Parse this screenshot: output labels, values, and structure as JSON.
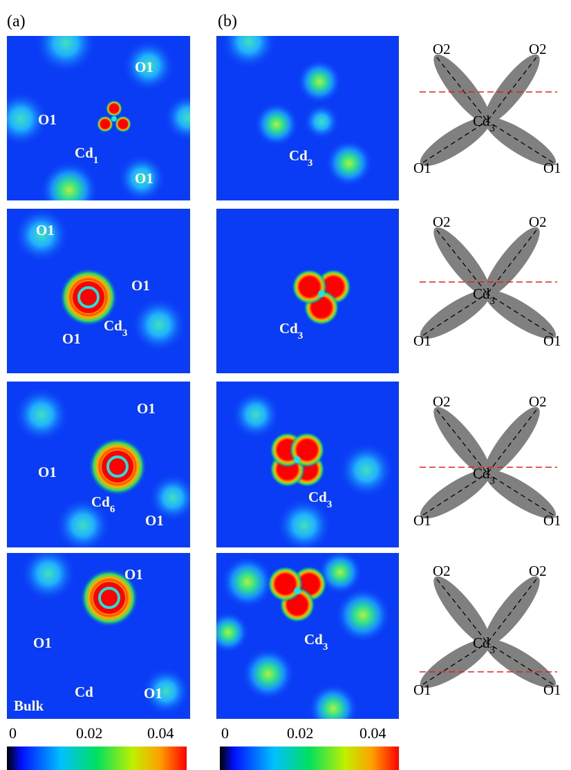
{
  "column_labels": [
    "(a)",
    "(b)"
  ],
  "rows": [
    {
      "a_labels": [
        "O1",
        "O1",
        "O1"
      ],
      "a_center": {
        "text": "Cd",
        "sub": "1"
      },
      "b_center": {
        "text": "Cd",
        "sub": "3"
      },
      "diagram": {
        "top_left": "O2",
        "top_right": "O2",
        "bottom_left": "O1",
        "bottom_right": "O1",
        "center": {
          "text": "Cd",
          "sub": "3"
        }
      }
    },
    {
      "a_labels": [
        "O1",
        "O1",
        "O1"
      ],
      "a_center": {
        "text": "Cd",
        "sub": "3"
      },
      "b_center": {
        "text": "Cd",
        "sub": "3"
      },
      "diagram": {
        "top_left": "O2",
        "top_right": "O2",
        "bottom_left": "O1",
        "bottom_right": "O1",
        "center": {
          "text": "Cd",
          "sub": "3"
        }
      }
    },
    {
      "a_labels": [
        "O1",
        "O1",
        "O1"
      ],
      "a_center": {
        "text": "Cd",
        "sub": "6"
      },
      "b_center": {
        "text": "Cd",
        "sub": "3"
      },
      "diagram": {
        "top_left": "O2",
        "top_right": "O2",
        "bottom_left": "O1",
        "bottom_right": "O1",
        "center": {
          "text": "Cd",
          "sub": "3"
        }
      }
    },
    {
      "a_labels": [
        "O1",
        "O1",
        "O1"
      ],
      "a_center": {
        "text": "Cd"
      },
      "a_extra": "Bulk",
      "b_center": {
        "text": "Cd",
        "sub": "3"
      },
      "diagram": {
        "top_left": "O2",
        "top_right": "O2",
        "bottom_left": "O1",
        "bottom_right": "O1",
        "center": {
          "text": "Cd",
          "sub": "3"
        }
      }
    }
  ],
  "colorbars": [
    {
      "ticks": [
        "0",
        "0.02",
        "0.04"
      ]
    },
    {
      "ticks": [
        "0",
        "0.02",
        "0.04"
      ]
    }
  ]
}
